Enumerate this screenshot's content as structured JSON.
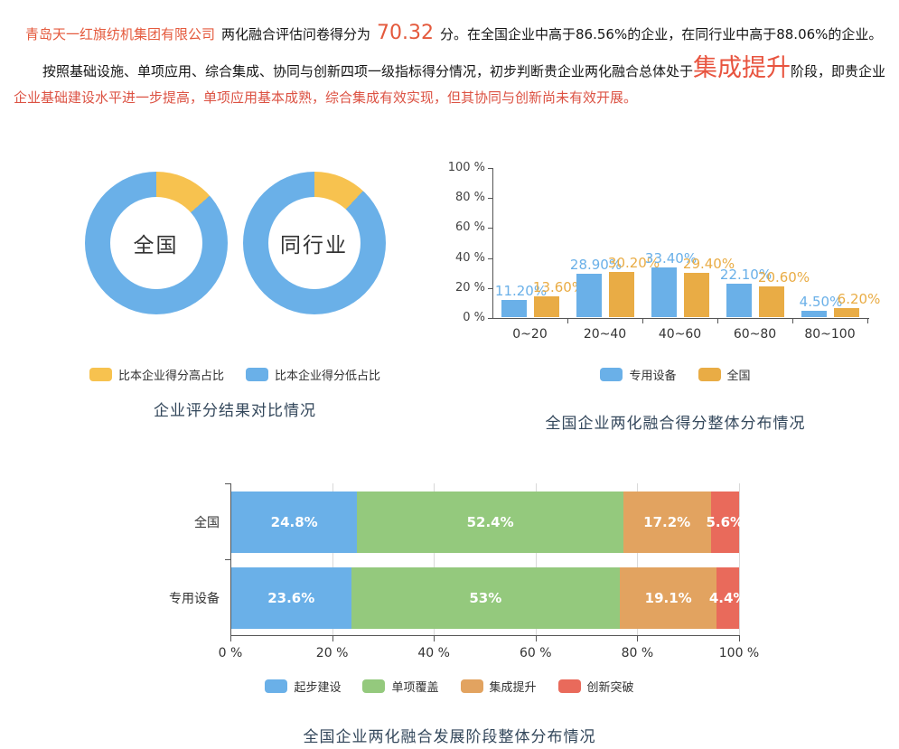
{
  "page": {
    "intro": {
      "company_name": "青岛天一红旗纺机集团有限公司",
      "lead_text": "两化融合评估问卷得分为",
      "score": "70.32",
      "after_score": "分。在全国企业中高于86.56%的企业，在同行业中高于88.06%的企业。"
    },
    "assessment": {
      "part1": "按照基础设施、单项应用、综合集成、协同与创新四项一级指标得分情况，初步判断贵企业两化融合总体处于",
      "stage": "集成提升",
      "part2": "阶段，即贵企业",
      "part3_red": "企业基础建设水平进一步提高，单项应用基本成熟，综合集成有效实现，但其协同与创新尚未有效开展。"
    }
  },
  "colors": {
    "accent_orange_red": "#e4593c",
    "stage_red": "#e8543f",
    "body_red": "#dc5243",
    "series_blue": "#6ab0e8",
    "donut_yellow": "#f7c24f",
    "bar_orange": "#e9ac45",
    "stack_green": "#94c97d",
    "stack_tan": "#e2a360",
    "stack_red": "#e96a5b",
    "title_color": "#33475b"
  },
  "chart_data": [
    {
      "type": "pie",
      "variant": "donut-pair",
      "title": "企业评分结果对比情况",
      "donuts": [
        {
          "key": "national",
          "center_label": "全国",
          "slices": [
            {
              "name": "比本企业得分高占比",
              "value": 13.44
            },
            {
              "name": "比本企业得分低占比",
              "value": 86.56
            }
          ]
        },
        {
          "key": "industry",
          "center_label": "同行业",
          "slices": [
            {
              "name": "比本企业得分高占比",
              "value": 11.94
            },
            {
              "name": "比本企业得分低占比",
              "value": 88.06
            }
          ]
        }
      ],
      "legend": [
        {
          "key": "higher",
          "label": "比本企业得分高占比",
          "color": "#f7c24f"
        },
        {
          "key": "lower",
          "label": "比本企业得分低占比",
          "color": "#6ab0e8"
        }
      ],
      "legend_position": "bottom"
    },
    {
      "type": "bar",
      "title": "全国企业两化融合得分整体分布情况",
      "categories": [
        "0~20",
        "20~40",
        "40~60",
        "60~80",
        "80~100"
      ],
      "series": [
        {
          "key": "special-equipment",
          "name": "专用设备",
          "color": "#6ab0e8",
          "values": [
            11.2,
            28.9,
            33.4,
            22.1,
            4.5
          ],
          "labels": [
            "11.20%",
            "28.90%",
            "33.40%",
            "22.10%",
            "4.50%"
          ]
        },
        {
          "key": "national",
          "name": "全国",
          "color": "#e9ac45",
          "values": [
            13.6,
            30.2,
            29.4,
            20.6,
            6.2
          ],
          "labels": [
            "13.60%",
            "30.20%",
            "29.40%",
            "20.60%",
            "6.20%"
          ]
        }
      ],
      "y_ticks": [
        "0 %",
        "20 %",
        "40 %",
        "60 %",
        "80 %",
        "100 %"
      ],
      "ylim": [
        0,
        100
      ],
      "grid": false,
      "legend_position": "bottom"
    },
    {
      "type": "bar",
      "variant": "horizontal-stacked",
      "title": "全国企业两化融合发展阶段整体分布情况",
      "categories": [
        "全国",
        "专用设备"
      ],
      "series": [
        {
          "key": "initial-construction",
          "name": "起步建设",
          "color": "#6ab0e8",
          "values": [
            24.8,
            23.6
          ],
          "labels": [
            "24.8%",
            "23.6%"
          ]
        },
        {
          "key": "single-coverage",
          "name": "单项覆盖",
          "color": "#94c97d",
          "values": [
            52.4,
            53
          ],
          "labels": [
            "52.4%",
            "53%"
          ]
        },
        {
          "key": "integration-improvement",
          "name": "集成提升",
          "color": "#e2a360",
          "values": [
            17.2,
            19.1
          ],
          "labels": [
            "17.2%",
            "19.1%"
          ]
        },
        {
          "key": "innovation-breakthrough",
          "name": "创新突破",
          "color": "#e96a5b",
          "values": [
            5.6,
            4.4
          ],
          "labels": [
            "5.6%",
            "4.4%"
          ]
        }
      ],
      "x_ticks": [
        "0 %",
        "20 %",
        "40 %",
        "60 %",
        "80 %",
        "100 %"
      ],
      "xlim": [
        0,
        100
      ],
      "grid": true,
      "legend_position": "bottom"
    }
  ]
}
